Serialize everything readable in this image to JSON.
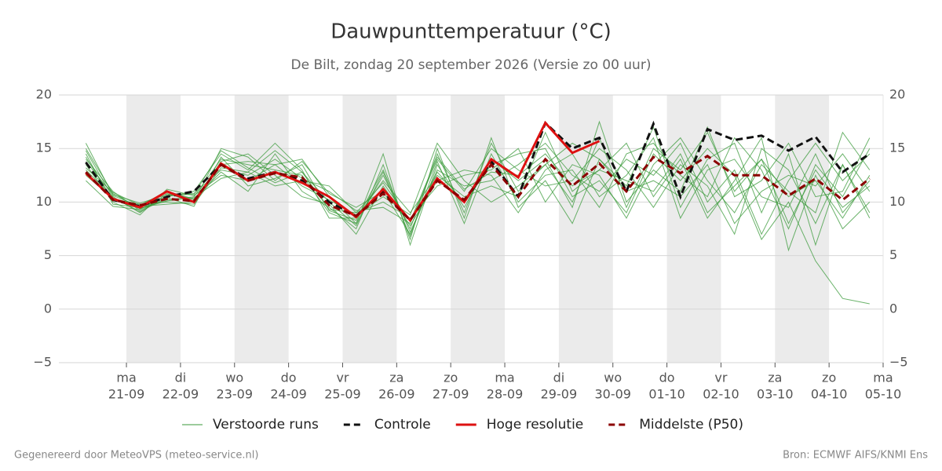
{
  "chart_data": {
    "type": "line",
    "title": "Dauwpunttemperatuur (°C)",
    "subtitle": "De Bilt, zondag 20 september 2026 (Versie zo 00 uur)",
    "footer_left": "Gegenereerd door MeteoVPS (meteo-service.nl)",
    "footer_right": "Bron: ECMWF AIFS/KNMI Ens",
    "xlim": [
      -0.25,
      15
    ],
    "xticks": [
      {
        "value": 1,
        "weekday": "ma",
        "label": "21-09"
      },
      {
        "value": 2,
        "weekday": "di",
        "label": "22-09"
      },
      {
        "value": 3,
        "weekday": "wo",
        "label": "23-09"
      },
      {
        "value": 4,
        "weekday": "do",
        "label": "24-09"
      },
      {
        "value": 5,
        "weekday": "vr",
        "label": "25-09"
      },
      {
        "value": 6,
        "weekday": "za",
        "label": "26-09"
      },
      {
        "value": 7,
        "weekday": "zo",
        "label": "27-09"
      },
      {
        "value": 8,
        "weekday": "ma",
        "label": "28-09"
      },
      {
        "value": 9,
        "weekday": "di",
        "label": "29-09"
      },
      {
        "value": 10,
        "weekday": "wo",
        "label": "30-09"
      },
      {
        "value": 11,
        "weekday": "do",
        "label": "01-10"
      },
      {
        "value": 12,
        "weekday": "vr",
        "label": "02-10"
      },
      {
        "value": 13,
        "weekday": "za",
        "label": "03-10"
      },
      {
        "value": 14,
        "weekday": "zo",
        "label": "04-10"
      },
      {
        "value": 15,
        "weekday": "ma",
        "label": "05-10"
      }
    ],
    "ylim": [
      -5,
      20
    ],
    "yticks": [
      {
        "value": -5,
        "label": "−5"
      },
      0,
      5,
      10,
      15,
      20
    ],
    "grid": true,
    "x": [
      0.25,
      0.75,
      1.25,
      1.75,
      2.25,
      2.75,
      3.25,
      3.75,
      4.25,
      4.75,
      5.25,
      5.75,
      6.25,
      6.75,
      7.25,
      7.75,
      8.25,
      8.75,
      9.25,
      9.75,
      10.25,
      10.75,
      11.25,
      11.75,
      12.25,
      12.75,
      13.25,
      13.75,
      14.25,
      14.75
    ],
    "series": [
      {
        "name": "Verstoorde runs",
        "color": "#3a9a3a",
        "dash": false,
        "members": [
          [
            15.0,
            10.8,
            9.4,
            10.2,
            10.5,
            14.0,
            13.5,
            13.0,
            12.5,
            9.0,
            8.0,
            12.5,
            7.5,
            14.5,
            9.0,
            15.5,
            11.0,
            13.5,
            10.0,
            16.0,
            9.5,
            15.0,
            13.0,
            16.5,
            11.0,
            14.0,
            8.0,
            13.0,
            9.5,
            11.5
          ],
          [
            13.0,
            10.5,
            9.0,
            10.8,
            10.0,
            15.0,
            14.2,
            12.0,
            13.8,
            10.8,
            9.5,
            11.0,
            7.0,
            13.0,
            11.5,
            12.0,
            13.5,
            15.5,
            12.5,
            11.0,
            14.0,
            12.5,
            15.5,
            10.0,
            13.0,
            7.0,
            12.0,
            15.5,
            12.0,
            14.5
          ],
          [
            14.5,
            9.8,
            9.5,
            11.0,
            10.3,
            12.8,
            11.0,
            14.5,
            11.0,
            9.5,
            7.5,
            13.5,
            6.5,
            15.0,
            8.5,
            16.0,
            9.5,
            12.0,
            8.0,
            14.0,
            11.5,
            17.0,
            9.5,
            14.0,
            15.5,
            9.0,
            14.5,
            6.0,
            13.5,
            9.0
          ],
          [
            12.5,
            10.3,
            9.8,
            10.0,
            9.8,
            13.2,
            12.8,
            11.5,
            12.0,
            11.5,
            9.0,
            10.0,
            8.5,
            11.5,
            12.5,
            13.0,
            15.0,
            10.0,
            13.5,
            12.5,
            8.5,
            13.5,
            16.0,
            12.0,
            9.0,
            13.5,
            11.0,
            9.0,
            16.5,
            13.0
          ],
          [
            14.0,
            11.0,
            9.2,
            10.5,
            11.0,
            14.5,
            13.0,
            15.5,
            13.0,
            8.5,
            8.5,
            12.0,
            9.0,
            12.5,
            10.5,
            11.5,
            10.5,
            16.5,
            11.0,
            13.0,
            15.5,
            10.5,
            14.0,
            8.5,
            12.0,
            16.0,
            5.5,
            12.5,
            7.5,
            10.0
          ],
          [
            13.5,
            10.0,
            8.8,
            11.2,
            10.6,
            12.5,
            12.0,
            13.5,
            14.0,
            10.5,
            8.0,
            14.5,
            6.0,
            13.5,
            9.5,
            14.0,
            12.0,
            14.0,
            9.5,
            17.5,
            10.0,
            13.0,
            11.0,
            17.0,
            10.5,
            12.0,
            15.5,
            10.5,
            11.0,
            16.0
          ],
          [
            15.5,
            10.6,
            9.6,
            9.8,
            10.0,
            13.8,
            14.5,
            12.5,
            10.5,
            9.8,
            7.0,
            11.5,
            7.8,
            12.0,
            13.0,
            12.5,
            9.0,
            13.0,
            14.5,
            10.5,
            12.5,
            16.0,
            8.5,
            13.0,
            14.0,
            10.5,
            9.5,
            14.5,
            9.0,
            12.0
          ],
          [
            12.0,
            9.6,
            9.3,
            10.6,
            10.8,
            13.0,
            12.5,
            14.0,
            12.2,
            11.0,
            9.2,
            9.5,
            8.0,
            14.0,
            11.0,
            15.0,
            13.0,
            11.5,
            12.0,
            15.0,
            13.0,
            9.5,
            13.5,
            11.5,
            7.0,
            15.0,
            13.0,
            8.0,
            13.5,
            8.5
          ],
          [
            14.8,
            10.4,
            9.1,
            10.4,
            9.6,
            14.2,
            11.5,
            12.2,
            13.5,
            9.2,
            8.3,
            13.0,
            7.2,
            12.8,
            10.0,
            13.5,
            14.5,
            15.0,
            10.5,
            12.0,
            9.0,
            14.5,
            12.0,
            15.0,
            12.5,
            6.5,
            10.0,
            4.5,
            1.0,
            0.5
          ],
          [
            13.2,
            10.9,
            9.7,
            11.0,
            10.2,
            13.5,
            13.8,
            13.5,
            11.5,
            10.2,
            8.8,
            10.5,
            8.8,
            15.5,
            12.0,
            10.0,
            11.5,
            13.5,
            15.5,
            14.0,
            11.0,
            12.0,
            10.5,
            13.5,
            8.0,
            11.0,
            12.5,
            11.5,
            14.5,
            11.0
          ],
          [
            14.2,
            10.2,
            9.4,
            10.1,
            10.4,
            12.2,
            12.8,
            14.8,
            12.8,
            10.0,
            7.8,
            12.8,
            6.8,
            13.8,
            8.0,
            14.5,
            10.0,
            12.5,
            13.0,
            9.5,
            14.5,
            15.5,
            12.5,
            10.5,
            16.0,
            13.0,
            7.5,
            13.5,
            10.5,
            15.0
          ],
          [
            13.8,
            10.7,
            9.9,
            10.7,
            10.7,
            14.8,
            13.2,
            11.8,
            12.8,
            9.3,
            9.0,
            11.8,
            8.2,
            14.2,
            11.2,
            12.8,
            12.5,
            14.5,
            11.5,
            13.0,
            12.0,
            11.0,
            14.5,
            9.0,
            11.5,
            14.0,
            10.5,
            12.0,
            8.5,
            12.5
          ]
        ]
      },
      {
        "name": "Controle",
        "color": "#111111",
        "dash": true,
        "values": [
          13.7,
          10.2,
          9.6,
          10.5,
          11.0,
          13.5,
          12.2,
          12.8,
          12.0,
          10.0,
          8.7,
          11.0,
          8.3,
          12.2,
          10.0,
          13.8,
          10.5,
          17.4,
          15.0,
          16.0,
          11.0,
          17.3,
          10.5,
          16.8,
          15.8,
          16.2,
          14.8,
          16.1,
          12.8,
          14.5
        ]
      },
      {
        "name": "Hoge resolutie",
        "color": "#dd1111",
        "dash": false,
        "values": [
          12.7,
          10.3,
          9.5,
          11.0,
          10.0,
          13.6,
          12.0,
          12.8,
          11.8,
          10.5,
          8.6,
          11.2,
          8.3,
          12.2,
          10.0,
          14.0,
          12.3,
          17.4,
          14.6,
          15.7,
          null,
          null,
          null,
          null,
          null,
          null,
          null,
          null,
          null,
          null
        ]
      },
      {
        "name": "Middelste (P50)",
        "color": "#8b0000",
        "dash": true,
        "values": [
          12.8,
          10.2,
          9.7,
          10.3,
          10.1,
          13.5,
          12.0,
          12.7,
          12.3,
          9.7,
          8.7,
          10.8,
          8.3,
          12.0,
          10.2,
          13.5,
          10.5,
          14.0,
          11.5,
          13.6,
          11.0,
          14.2,
          12.7,
          14.3,
          12.5,
          12.5,
          10.6,
          12.2,
          10.2,
          12.2
        ]
      }
    ]
  }
}
